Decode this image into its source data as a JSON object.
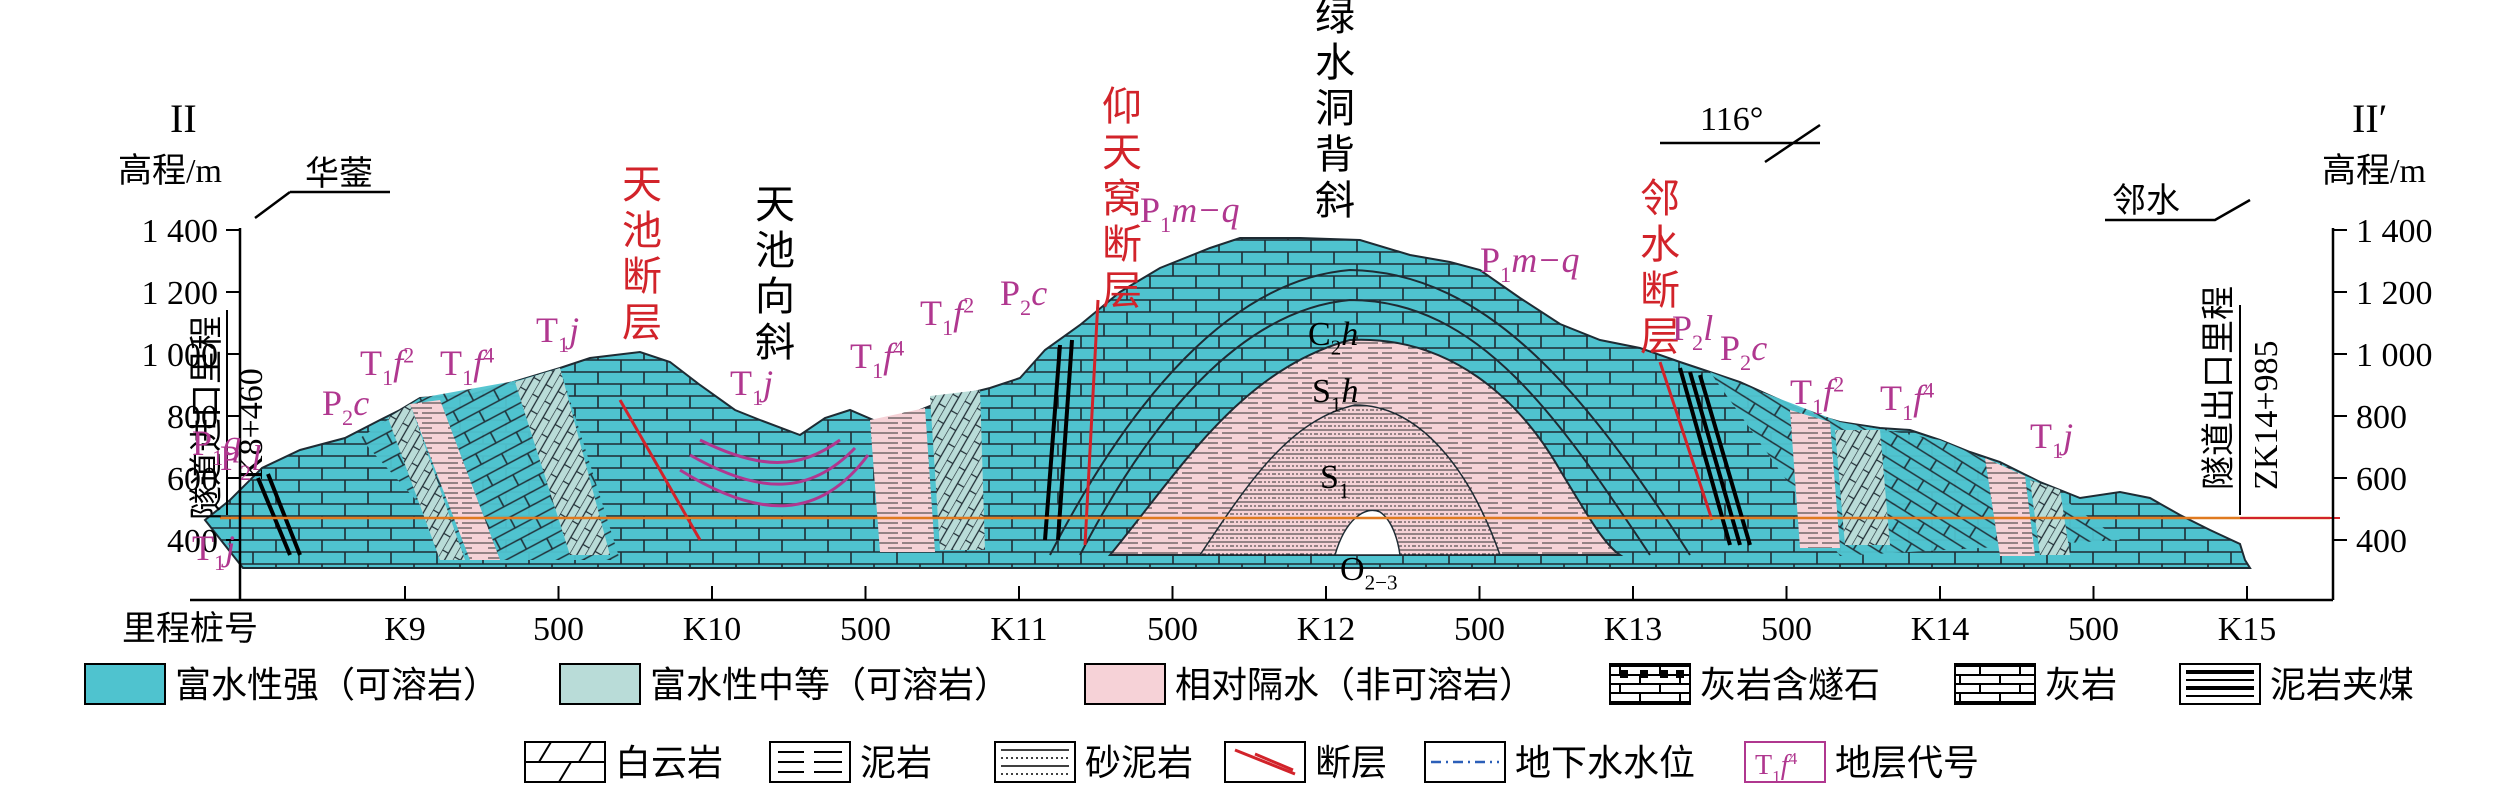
{
  "section": {
    "left_end": "II",
    "right_end": "II′",
    "elevation_label_left": "高程/m",
    "elevation_label_right": "高程/m",
    "y_ticks_left": [
      "1 400",
      "1 200",
      "1 000",
      "800",
      "600",
      "400"
    ],
    "y_ticks_right": [
      "1 400",
      "1 200",
      "1 000",
      "800",
      "600",
      "400"
    ],
    "x_title": "里程桩号",
    "x_ticks": [
      "K9",
      "500",
      "K10",
      "500",
      "K11",
      "500",
      "K12",
      "500",
      "K13",
      "500",
      "K14",
      "500",
      "K15"
    ],
    "direction_left": "华蓥",
    "direction_right": "邻水",
    "bearing": "116°"
  },
  "structures": {
    "tianchi_fault": "天池断层",
    "tianchi_syncline": "天池向斜",
    "yangtianwo_fault": "仰天窝断层",
    "lvshuidong_anticline": "绿水洞背斜",
    "linshui_fault": "邻水断层"
  },
  "tunnel": {
    "entrance_label": "隧道进口里程",
    "entrance_chainage": "K8+460",
    "exit_label": "隧道出口里程",
    "exit_chainage": "ZK14+985"
  },
  "strata_labels": [
    {
      "code": "T",
      "sub": "1",
      "it": "j",
      "sup": ""
    },
    {
      "code": "P",
      "sub": "1",
      "it": "q",
      "sup": ""
    },
    {
      "code": "P",
      "sub": "2",
      "it": "l",
      "sup": ""
    },
    {
      "code": "P",
      "sub": "2",
      "it": "c",
      "sup": ""
    },
    {
      "code": "T",
      "sub": "1",
      "it": "f",
      "sup": "2"
    },
    {
      "code": "T",
      "sub": "1",
      "it": "f",
      "sup": "4"
    },
    {
      "code": "T",
      "sub": "1",
      "it": "j",
      "sup": ""
    },
    {
      "code": "T",
      "sub": "1",
      "it": "j",
      "sup": ""
    },
    {
      "code": "T",
      "sub": "1",
      "it": "f",
      "sup": "4"
    },
    {
      "code": "T",
      "sub": "1",
      "it": "f",
      "sup": "2"
    },
    {
      "code": "P",
      "sub": "2",
      "it": "c",
      "sup": ""
    },
    {
      "code": "P",
      "sub": "1",
      "it": "m−q",
      "sup": ""
    },
    {
      "code": "P",
      "sub": "1",
      "it": "m−q",
      "sup": ""
    },
    {
      "code": "P",
      "sub": "2",
      "it": "l",
      "sup": ""
    },
    {
      "code": "P",
      "sub": "2",
      "it": "c",
      "sup": ""
    },
    {
      "code": "T",
      "sub": "1",
      "it": "f",
      "sup": "2"
    },
    {
      "code": "T",
      "sub": "1",
      "it": "f",
      "sup": "4"
    },
    {
      "code": "T",
      "sub": "1",
      "it": "j",
      "sup": ""
    }
  ],
  "core_labels": [
    {
      "code": "C",
      "sub": "2",
      "it": "h"
    },
    {
      "code": "S",
      "sub": "1",
      "it": "h"
    },
    {
      "code": "S",
      "sub": "1",
      "it": ""
    },
    {
      "code": "O",
      "sub": "2−3",
      "it": ""
    }
  ],
  "legend": {
    "row1": [
      {
        "label": "富水性强（可溶岩）",
        "swatch": "strong"
      },
      {
        "label": "富水性中等（可溶岩）",
        "swatch": "medium"
      },
      {
        "label": "相对隔水（非可溶岩）",
        "swatch": "aquiclude"
      },
      {
        "label": "灰岩含燧石",
        "swatch": "chert"
      },
      {
        "label": "灰岩",
        "swatch": "limestone"
      },
      {
        "label": "泥岩夹煤",
        "swatch": "coal"
      }
    ],
    "row2": [
      {
        "label": "白云岩",
        "swatch": "dolomite"
      },
      {
        "label": "泥岩",
        "swatch": "mudstone"
      },
      {
        "label": "砂泥岩",
        "swatch": "sandmud"
      },
      {
        "label": "断层",
        "swatch": "fault"
      },
      {
        "label": "地下水水位",
        "swatch": "water"
      },
      {
        "label": "地层代号",
        "swatch": "code",
        "sample": {
          "code": "T",
          "sub": "1",
          "it": "f",
          "sup": "4"
        }
      }
    ]
  },
  "colors": {
    "strong": "#4fc3cf",
    "medium": "#b9dcd8",
    "aquiclude": "#f6d2d7",
    "fault": "#d2232a",
    "strata_label": "#b0378f",
    "water_level": "#e07a1f"
  }
}
